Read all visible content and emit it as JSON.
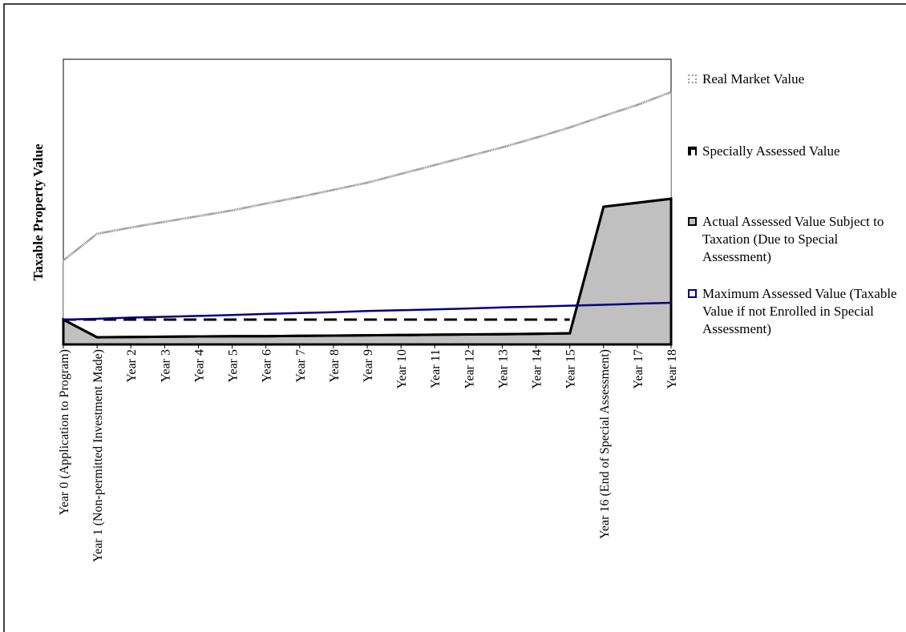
{
  "chart_data": {
    "type": "line",
    "y_axis_label": "Taxable Property Value",
    "ylim": [
      0,
      100
    ],
    "categories": [
      "Year 0 (Application to Program)",
      "Year 1 (Non-permitted Investment Made)",
      "Year 2",
      "Year 3",
      "Year 4",
      "Year 5",
      "Year 6",
      "Year 7",
      "Year 8",
      "Year 9",
      "Year 10",
      "Year 11",
      "Year 12",
      "Year 13",
      "Year 14",
      "Year 15",
      "Year 16 (End of Special Assessment)",
      "Year 17",
      "Year 18"
    ],
    "series": [
      {
        "name": "Real Market Value",
        "style": "dotted-area",
        "color": "#9a9a9a",
        "fill_color": "#ffffff",
        "values": [
          29.5,
          38.8,
          41,
          43,
          45,
          47,
          49.4,
          51.7,
          54.2,
          56.7,
          59.8,
          62.9,
          66,
          69.1,
          72.5,
          76.1,
          80.1,
          84,
          88.5
        ]
      },
      {
        "name": "Specially Assessed Value",
        "style": "dashed",
        "color": "#000000",
        "values": [
          8.7,
          8.7,
          8.7,
          8.7,
          8.7,
          8.7,
          8.7,
          8.7,
          8.7,
          8.7,
          8.7,
          8.7,
          8.7,
          8.7,
          8.7,
          8.7,
          null,
          null,
          null
        ]
      },
      {
        "name": "Actual Assessed Value Subject to Taxation (Due to Special Assessment)",
        "style": "area",
        "color": "#000000",
        "fill_color": "#c0c0c0",
        "values": [
          8.7,
          2.5,
          2.6,
          2.7,
          2.8,
          2.9,
          2.9,
          3.0,
          3.1,
          3.2,
          3.3,
          3.4,
          3.5,
          3.6,
          3.7,
          3.9,
          48.3,
          49.7,
          51.1
        ]
      },
      {
        "name": "Maximum Assessed Value (Taxable Value if not Enrolled in Special Assessment)",
        "style": "solid",
        "color": "#000080",
        "values": [
          8.7,
          9.0,
          9.4,
          9.7,
          10.0,
          10.3,
          10.7,
          11.0,
          11.3,
          11.7,
          12.0,
          12.3,
          12.6,
          13.0,
          13.3,
          13.6,
          13.9,
          14.3,
          14.6
        ]
      }
    ]
  }
}
